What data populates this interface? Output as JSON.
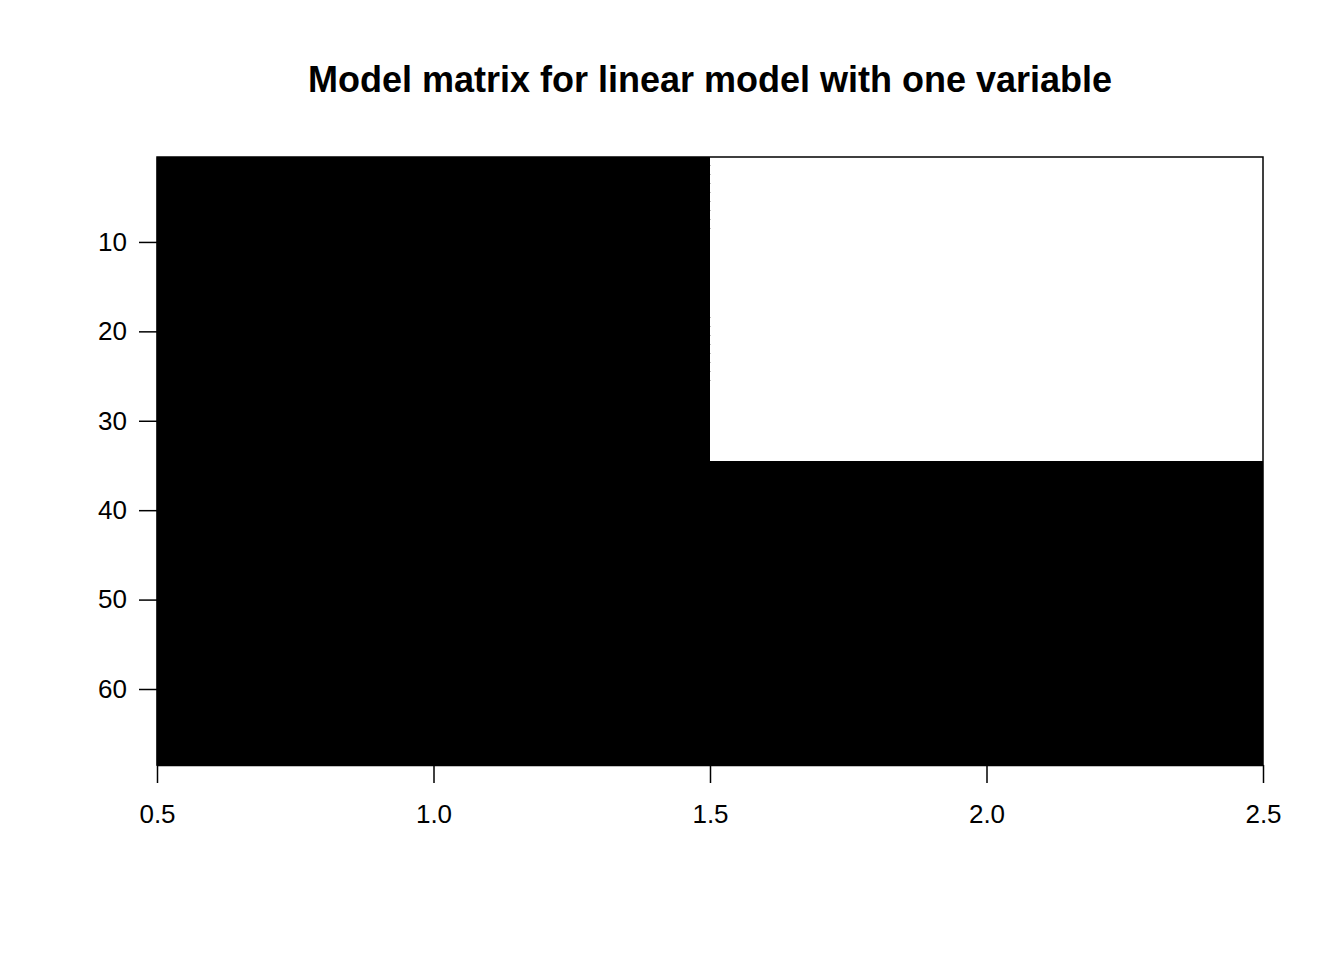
{
  "chart_data": {
    "type": "heatmap",
    "title": "Model matrix for linear model with one variable",
    "x": [
      1,
      2
    ],
    "y": [
      1,
      2,
      3,
      4,
      5,
      6,
      7,
      8,
      9,
      10,
      11,
      12,
      13,
      14,
      15,
      16,
      17,
      18,
      19,
      20,
      21,
      22,
      23,
      24,
      25,
      26,
      27,
      28,
      29,
      30,
      31,
      32,
      33,
      34,
      35,
      36,
      37,
      38,
      39,
      40,
      41,
      42,
      43,
      44,
      45,
      46,
      47,
      48,
      49,
      50,
      51,
      52,
      53,
      54,
      55,
      56,
      57,
      58,
      59,
      60,
      61,
      62,
      63,
      64,
      65,
      66,
      67,
      68
    ],
    "cells": [
      [
        1,
        0
      ],
      [
        1,
        0
      ],
      [
        1,
        0
      ],
      [
        1,
        0
      ],
      [
        1,
        0
      ],
      [
        1,
        0
      ],
      [
        1,
        0
      ],
      [
        1,
        0
      ],
      [
        1,
        0
      ],
      [
        1,
        0
      ],
      [
        1,
        0
      ],
      [
        1,
        0
      ],
      [
        1,
        0
      ],
      [
        1,
        0
      ],
      [
        1,
        0
      ],
      [
        1,
        0
      ],
      [
        1,
        0
      ],
      [
        1,
        0
      ],
      [
        1,
        0
      ],
      [
        1,
        0
      ],
      [
        1,
        0
      ],
      [
        1,
        0
      ],
      [
        1,
        0
      ],
      [
        1,
        0
      ],
      [
        1,
        0
      ],
      [
        1,
        0
      ],
      [
        1,
        0
      ],
      [
        1,
        0
      ],
      [
        1,
        0
      ],
      [
        1,
        0
      ],
      [
        1,
        0
      ],
      [
        1,
        0
      ],
      [
        1,
        0
      ],
      [
        1,
        0
      ],
      [
        1,
        1
      ],
      [
        1,
        1
      ],
      [
        1,
        1
      ],
      [
        1,
        1
      ],
      [
        1,
        1
      ],
      [
        1,
        1
      ],
      [
        1,
        1
      ],
      [
        1,
        1
      ],
      [
        1,
        1
      ],
      [
        1,
        1
      ],
      [
        1,
        1
      ],
      [
        1,
        1
      ],
      [
        1,
        1
      ],
      [
        1,
        1
      ],
      [
        1,
        1
      ],
      [
        1,
        1
      ],
      [
        1,
        1
      ],
      [
        1,
        1
      ],
      [
        1,
        1
      ],
      [
        1,
        1
      ],
      [
        1,
        1
      ],
      [
        1,
        1
      ],
      [
        1,
        1
      ],
      [
        1,
        1
      ],
      [
        1,
        1
      ],
      [
        1,
        1
      ],
      [
        1,
        1
      ],
      [
        1,
        1
      ],
      [
        1,
        1
      ],
      [
        1,
        1
      ],
      [
        1,
        1
      ],
      [
        1,
        1
      ],
      [
        1,
        1
      ],
      [
        1,
        1
      ]
    ],
    "xlim": [
      0.5,
      2.5
    ],
    "xticks": [
      0.5,
      {
        "value": 1,
        "label": "1.0"
      },
      1.5,
      {
        "value": 2,
        "label": "2.0"
      },
      2.5
    ],
    "ylim": [
      68.5,
      0.5
    ],
    "yticks": [
      10,
      20,
      30,
      40,
      50,
      60
    ]
  }
}
